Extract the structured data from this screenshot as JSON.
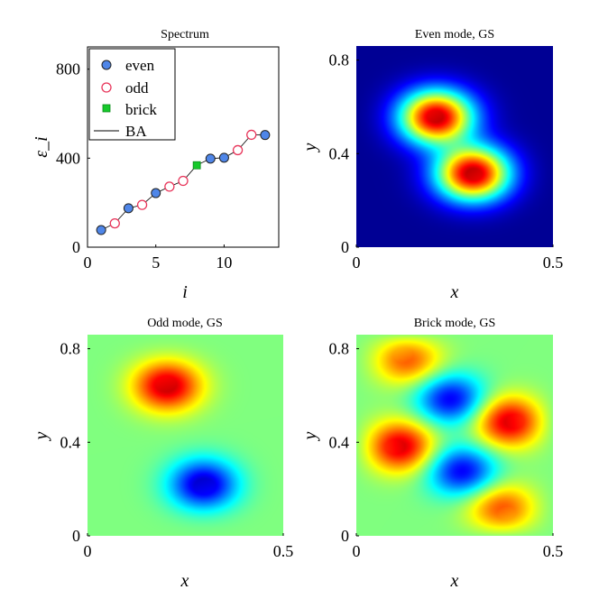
{
  "chart_data": [
    {
      "type": "scatter",
      "title": "Spectrum",
      "xlabel": "i",
      "ylabel": "ε_i",
      "xlim": [
        0,
        14
      ],
      "ylim": [
        0,
        900
      ],
      "xticks": [
        0,
        5,
        10
      ],
      "yticks": [
        0,
        400,
        800
      ],
      "x_tick_labels": [
        "0",
        "5",
        "10"
      ],
      "y_tick_labels": [
        "0",
        "400",
        "800"
      ],
      "legend_location": "top-left",
      "series": [
        {
          "name": "even",
          "marker": "circle-filled",
          "color": "#4f86e8",
          "x": [
            1,
            3,
            5,
            9,
            10,
            13
          ],
          "values": [
            77,
            175,
            243,
            398,
            402,
            504
          ]
        },
        {
          "name": "odd",
          "marker": "circle-open",
          "color": "#e8355a",
          "x": [
            2,
            4,
            6,
            7,
            11,
            12
          ],
          "values": [
            107,
            190,
            272,
            298,
            436,
            505
          ]
        },
        {
          "name": "brick",
          "marker": "square-filled",
          "color": "#16c92b",
          "x": [
            8
          ],
          "values": [
            368
          ]
        },
        {
          "name": "BA",
          "marker": "line",
          "color": "#000000",
          "x": [
            1,
            2,
            3,
            4,
            5,
            6,
            7,
            8,
            9,
            10,
            11,
            12,
            13
          ],
          "values": [
            77,
            107,
            175,
            190,
            243,
            272,
            298,
            368,
            398,
            402,
            436,
            505,
            504
          ]
        }
      ]
    },
    {
      "type": "heatmap",
      "title": "Even mode, GS",
      "xlabel": "x",
      "ylabel": "y",
      "xlim": [
        0,
        0.5
      ],
      "ylim": [
        0,
        0.86
      ],
      "xticks": [
        0,
        0.5
      ],
      "yticks": [
        0,
        0.4,
        0.8
      ],
      "x_tick_labels": [
        "0",
        "0.5"
      ],
      "y_tick_labels": [
        "0",
        "0.4",
        "0.8"
      ],
      "colormap": "jet",
      "mode": "even",
      "lobes": [
        {
          "cx": 0.2,
          "cy": 0.56,
          "amp": 1.0,
          "sign": 1
        },
        {
          "cx": 0.3,
          "cy": 0.31,
          "amp": 1.0,
          "sign": 1
        }
      ]
    },
    {
      "type": "heatmap",
      "title": "Odd mode, GS",
      "xlabel": "x",
      "ylabel": "y",
      "xlim": [
        0,
        0.5
      ],
      "ylim": [
        0,
        0.86
      ],
      "xticks": [
        0,
        0.5
      ],
      "yticks": [
        0,
        0.4,
        0.8
      ],
      "x_tick_labels": [
        "0",
        "0.5"
      ],
      "y_tick_labels": [
        "0",
        "0.4",
        "0.8"
      ],
      "colormap": "jet",
      "mode": "signed",
      "lobes": [
        {
          "cx": 0.2,
          "cy": 0.65,
          "amp": 1.0,
          "sign": 1
        },
        {
          "cx": 0.3,
          "cy": 0.21,
          "amp": 1.0,
          "sign": -1
        }
      ]
    },
    {
      "type": "heatmap",
      "title": "Brick mode, GS",
      "xlabel": "x",
      "ylabel": "y",
      "xlim": [
        0,
        0.5
      ],
      "ylim": [
        0,
        0.86
      ],
      "xticks": [
        0,
        0.5
      ],
      "yticks": [
        0,
        0.4,
        0.8
      ],
      "x_tick_labels": [
        "0",
        "0.5"
      ],
      "y_tick_labels": [
        "0",
        "0.4",
        "0.8"
      ],
      "colormap": "jet",
      "mode": "signed",
      "lobes": [
        {
          "cx": 0.12,
          "cy": 0.77,
          "amp": 1.0,
          "sign": 1
        },
        {
          "cx": 0.24,
          "cy": 0.59,
          "amp": 0.8,
          "sign": -1
        },
        {
          "cx": 0.4,
          "cy": 0.49,
          "amp": 1.0,
          "sign": 1
        },
        {
          "cx": 0.1,
          "cy": 0.38,
          "amp": 1.0,
          "sign": 1
        },
        {
          "cx": 0.27,
          "cy": 0.27,
          "amp": 0.8,
          "sign": -1
        },
        {
          "cx": 0.38,
          "cy": 0.1,
          "amp": 1.0,
          "sign": 1
        }
      ]
    }
  ]
}
